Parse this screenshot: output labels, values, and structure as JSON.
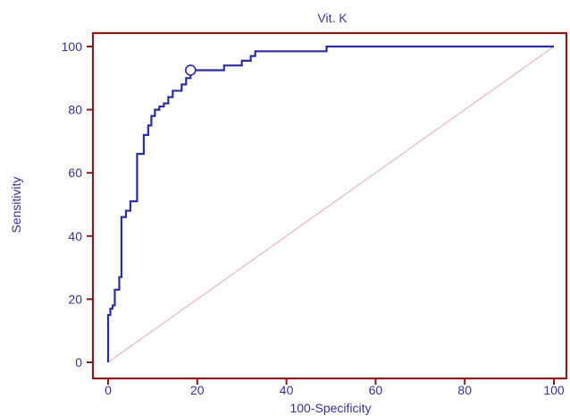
{
  "chart_data": {
    "type": "line",
    "title": "Vit. K",
    "xlabel": "100-Specificity",
    "ylabel": "Sensitivity",
    "xlim": [
      0,
      100
    ],
    "ylim": [
      0,
      100
    ],
    "xticks": [
      0,
      20,
      40,
      60,
      80,
      100
    ],
    "yticks": [
      0,
      20,
      40,
      60,
      80,
      100
    ],
    "grid": false,
    "legend": "none",
    "colors": {
      "roc": "#2b2e9c",
      "diagonal": "#e7b8b8",
      "frame": "#8b1a1a",
      "text": "#333399"
    },
    "series": [
      {
        "x": [
          0,
          0,
          0.5,
          0.5,
          1,
          1,
          1.5,
          1.5,
          2.5,
          2.5,
          3,
          3,
          4,
          4,
          5,
          5,
          6.5,
          6.5,
          8,
          8,
          9,
          9,
          9.7,
          9.7,
          10.5,
          10.5,
          11.5,
          11.5,
          12.5,
          12.5,
          13.5,
          13.5,
          14.5,
          14.5,
          16.5,
          16.5,
          17.5,
          17.5,
          18.5,
          18.5,
          26,
          26,
          30,
          30,
          32,
          32,
          33,
          33,
          49,
          49,
          100
        ],
        "y": [
          0,
          15,
          15,
          17,
          17,
          18,
          18,
          23,
          23,
          27,
          27,
          46,
          46,
          48,
          48,
          51,
          51,
          66,
          66,
          72,
          72,
          75,
          75,
          78,
          78,
          80,
          80,
          81,
          81,
          82,
          82,
          84,
          84,
          86,
          86,
          88,
          88,
          90,
          90,
          92.5,
          92.5,
          94,
          94,
          95.5,
          95.5,
          97,
          97,
          98.5,
          98.5,
          100,
          100
        ]
      },
      {
        "x": [
          0,
          100
        ],
        "y": [
          0,
          100
        ]
      }
    ],
    "annotations": [
      {
        "type": "circle-marker",
        "x": 18.5,
        "y": 92.5
      }
    ]
  }
}
